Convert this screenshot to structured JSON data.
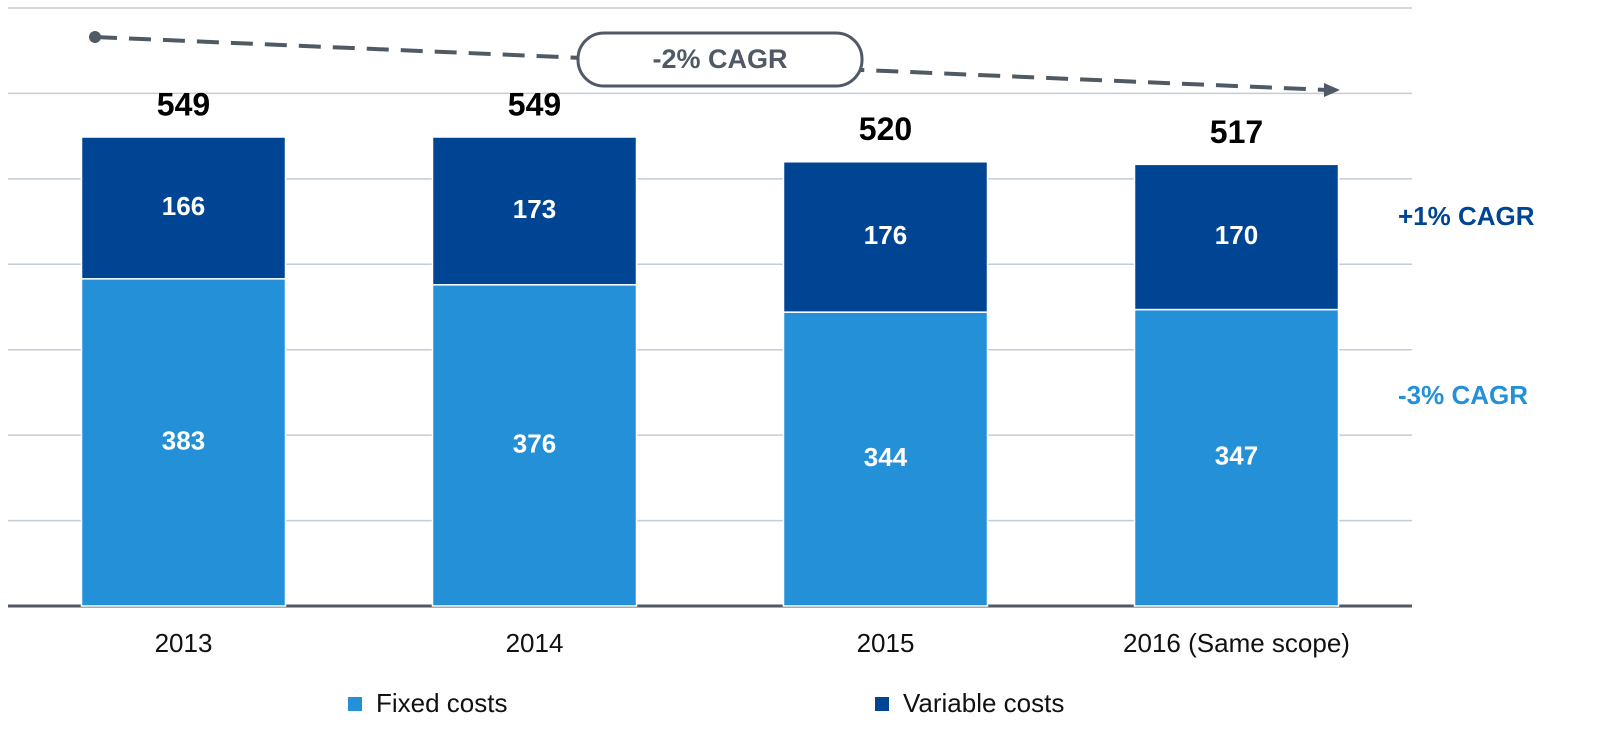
{
  "chart_data": {
    "type": "stacked_bar",
    "categories": [
      "2013",
      "2014",
      "2015",
      "2016 (Same scope)"
    ],
    "series": [
      {
        "name": "Fixed costs",
        "color": "#2490d8",
        "values": [
          383,
          376,
          344,
          347
        ]
      },
      {
        "name": "Variable costs",
        "color": "#004494",
        "values": [
          166,
          173,
          176,
          170
        ]
      }
    ],
    "totals": [
      549,
      549,
      520,
      517
    ],
    "annotations": [
      "-2% CAGR",
      "+1% CAGR",
      "-3% CAGR"
    ],
    "ylim": [
      0,
      700
    ],
    "yticks": [
      0,
      100,
      200,
      300,
      400,
      500,
      600,
      700
    ],
    "grid": true,
    "legend": "bottom"
  }
}
